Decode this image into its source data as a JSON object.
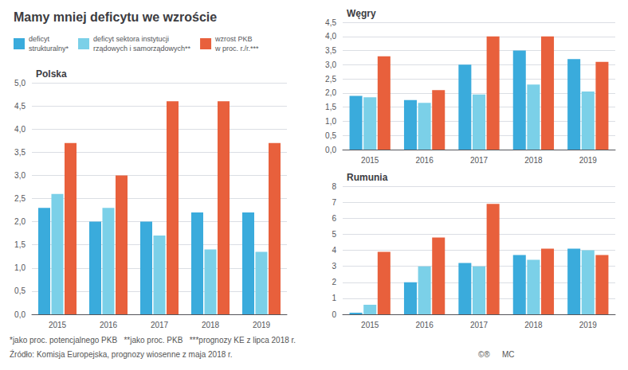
{
  "title": "Mamy mniej deficytu we wzroście",
  "legend": "upper left",
  "annotations": [
    "*jako proc. potencjalnego PKB   **jako proc. PKB   ***prognozy KE z lipca 2018 r.",
    "Źródło: Komisja Europejska, prognozy wiosenne z maja 2018 r.",
    "©®",
    "MC"
  ],
  "chart_data": [
    {
      "type": "bar",
      "title": "Polska",
      "categories": [
        "2015",
        "2016",
        "2017",
        "2018",
        "2019"
      ],
      "series": [
        {
          "name": "deficyt\nstrukturalny*",
          "color": "#3AABDC",
          "values": [
            2.3,
            2.0,
            2.0,
            2.2,
            2.2
          ]
        },
        {
          "name": "deficyt sektora instytucji\nrządowych i samorządowych**",
          "color": "#7BD0E8",
          "values": [
            2.6,
            2.3,
            1.7,
            1.4,
            1.35
          ]
        },
        {
          "name": "wzrost PKB\nw proc. r./r.***",
          "color": "#E8603C",
          "values": [
            3.7,
            3.0,
            4.6,
            4.6,
            3.7
          ]
        }
      ],
      "ylim": [
        0,
        5.0
      ],
      "yticks": [
        {
          "value": 0.0,
          "label": "0,0"
        },
        {
          "value": 0.5,
          "label": "0,5"
        },
        {
          "value": 1.0,
          "label": "1,0"
        },
        {
          "value": 1.5,
          "label": "1,5"
        },
        {
          "value": 2.0,
          "label": "2,0"
        },
        {
          "value": 2.5,
          "label": "2,5"
        },
        {
          "value": 3.0,
          "label": "3,0"
        },
        {
          "value": 3.5,
          "label": "3,5"
        },
        {
          "value": 4.0,
          "label": "4,0"
        },
        {
          "value": 4.5,
          "label": "4,5"
        },
        {
          "value": 5.0,
          "label": "5,0"
        }
      ],
      "grid": true
    },
    {
      "type": "bar",
      "title": "Węgry",
      "categories": [
        "2015",
        "2016",
        "2017",
        "2018",
        "2019"
      ],
      "series": [
        {
          "name": "deficyt\nstrukturalny*",
          "color": "#3AABDC",
          "values": [
            1.9,
            1.75,
            3.0,
            3.5,
            3.2
          ]
        },
        {
          "name": "deficyt sektora instytucji\nrządowych i samorządowych**",
          "color": "#7BD0E8",
          "values": [
            1.85,
            1.65,
            1.95,
            2.3,
            2.05
          ]
        },
        {
          "name": "wzrost PKB\nw proc. r./r.***",
          "color": "#E8603C",
          "values": [
            3.3,
            2.1,
            4.0,
            4.0,
            3.1
          ]
        }
      ],
      "ylim": [
        0,
        4.5
      ],
      "yticks": [
        {
          "value": 0.0,
          "label": "0,0"
        },
        {
          "value": 0.5,
          "label": "0,5"
        },
        {
          "value": 1.0,
          "label": "1,0"
        },
        {
          "value": 1.5,
          "label": "1,5"
        },
        {
          "value": 2.0,
          "label": "2,0"
        },
        {
          "value": 2.5,
          "label": "2,5"
        },
        {
          "value": 3.0,
          "label": "3,0"
        },
        {
          "value": 3.5,
          "label": "3,5"
        },
        {
          "value": 4.0,
          "label": "4,0"
        },
        {
          "value": 4.5,
          "label": "4,5"
        }
      ],
      "grid": true
    },
    {
      "type": "bar",
      "title": "Rumunia",
      "categories": [
        "2015",
        "2016",
        "2017",
        "2018",
        "2019"
      ],
      "series": [
        {
          "name": "deficyt\nstrukturalny*",
          "color": "#3AABDC",
          "values": [
            0.1,
            2.0,
            3.2,
            3.7,
            4.1
          ]
        },
        {
          "name": "deficyt sektora instytucji\nrządowych i samorządowych**",
          "color": "#7BD0E8",
          "values": [
            0.6,
            3.0,
            3.0,
            3.4,
            4.0
          ]
        },
        {
          "name": "wzrost PKB\nw proc. r./r.***",
          "color": "#E8603C",
          "values": [
            3.9,
            4.8,
            6.9,
            4.1,
            3.7
          ]
        }
      ],
      "ylim": [
        0,
        8
      ],
      "yticks": [
        0,
        1,
        2,
        3,
        4,
        5,
        6,
        7,
        8
      ],
      "grid": true
    }
  ]
}
